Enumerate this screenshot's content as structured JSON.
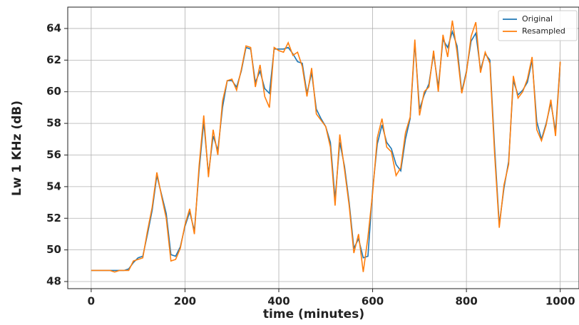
{
  "chart_data": {
    "type": "line",
    "xlabel": "time (minutes)",
    "ylabel": "Lw 1 KHz (dB)",
    "x": [
      0,
      10,
      20,
      30,
      40,
      50,
      60,
      70,
      80,
      90,
      100,
      110,
      120,
      130,
      140,
      150,
      160,
      170,
      180,
      190,
      200,
      210,
      220,
      230,
      240,
      250,
      260,
      270,
      280,
      290,
      300,
      310,
      320,
      330,
      340,
      350,
      360,
      370,
      380,
      390,
      400,
      410,
      420,
      430,
      440,
      450,
      460,
      470,
      480,
      490,
      500,
      510,
      520,
      530,
      540,
      550,
      560,
      570,
      580,
      590,
      600,
      610,
      620,
      630,
      640,
      650,
      660,
      670,
      680,
      690,
      700,
      710,
      720,
      730,
      740,
      750,
      760,
      770,
      780,
      790,
      800,
      810,
      820,
      830,
      840,
      850,
      860,
      870,
      880,
      890,
      900,
      910,
      920,
      930,
      940,
      950,
      960,
      970,
      980,
      990,
      1000
    ],
    "series": [
      {
        "name": "Original",
        "color": "#1f77b4",
        "values": [
          48.7,
          48.7,
          48.7,
          48.7,
          48.7,
          48.7,
          48.7,
          48.7,
          48.8,
          49.2,
          49.5,
          49.6,
          51,
          52.5,
          54.7,
          53.5,
          52.3,
          49.7,
          49.6,
          50.2,
          51.5,
          52.4,
          51.2,
          55,
          58.1,
          54.8,
          57.2,
          56.3,
          59,
          60.7,
          60.7,
          60.3,
          61.3,
          62.8,
          62.7,
          60.6,
          61.3,
          60.2,
          59.9,
          62.7,
          62.7,
          62.7,
          62.8,
          62.4,
          61.9,
          61.8,
          59.9,
          61.2,
          58.9,
          58.3,
          57.8,
          56.8,
          53.2,
          56.8,
          55.3,
          53,
          50.1,
          50.7,
          49.5,
          49.6,
          53.8,
          56.7,
          57.9,
          56.8,
          56.4,
          55.4,
          55,
          57,
          58.3,
          63.1,
          58.9,
          59.8,
          60.5,
          62.4,
          60.3,
          63.3,
          62.8,
          63.8,
          62.9,
          60,
          61.3,
          63.2,
          63.7,
          61.4,
          62.4,
          62,
          56.5,
          51.6,
          53.9,
          55.6,
          60.7,
          59.8,
          60.1,
          60.6,
          62,
          58.1,
          57,
          58,
          59.3,
          57.5,
          61.9
        ]
      },
      {
        "name": "Resampled",
        "color": "#ff7f0e",
        "values": [
          48.7,
          48.7,
          48.7,
          48.7,
          48.7,
          48.6,
          48.7,
          48.7,
          48.7,
          49.3,
          49.4,
          49.5,
          51.2,
          52.7,
          54.9,
          53.4,
          52,
          49.3,
          49.4,
          50.1,
          51.6,
          52.6,
          51,
          55.3,
          58.5,
          54.6,
          57.6,
          56,
          59.4,
          60.7,
          60.8,
          60.1,
          61.4,
          62.9,
          62.8,
          60.3,
          61.7,
          59.7,
          59,
          62.8,
          62.6,
          62.5,
          63.1,
          62.3,
          62.5,
          61.6,
          59.7,
          61.5,
          58.6,
          58.2,
          57.8,
          56.5,
          52.8,
          57.3,
          55.1,
          52.8,
          49.8,
          51,
          48.6,
          50.8,
          53.6,
          57.1,
          58.3,
          56.5,
          56.2,
          54.7,
          55.2,
          57.4,
          58.4,
          63.3,
          58.5,
          60,
          60.3,
          62.6,
          60,
          63.6,
          62.2,
          64.5,
          62.5,
          59.9,
          61.2,
          63.5,
          64.4,
          61.2,
          62.5,
          61.8,
          56.1,
          51.4,
          54.1,
          55.4,
          61,
          59.6,
          60,
          60.8,
          62.2,
          57.6,
          56.9,
          57.9,
          59.5,
          57.2,
          61.9
        ]
      }
    ],
    "xlim": [
      -50,
      1040
    ],
    "ylim": [
      47.55,
      65.35
    ],
    "xticks": [
      0,
      200,
      400,
      600,
      800,
      1000
    ],
    "yticks": [
      48,
      50,
      52,
      54,
      56,
      58,
      60,
      62,
      64
    ],
    "grid": true,
    "legend": "upper right"
  }
}
